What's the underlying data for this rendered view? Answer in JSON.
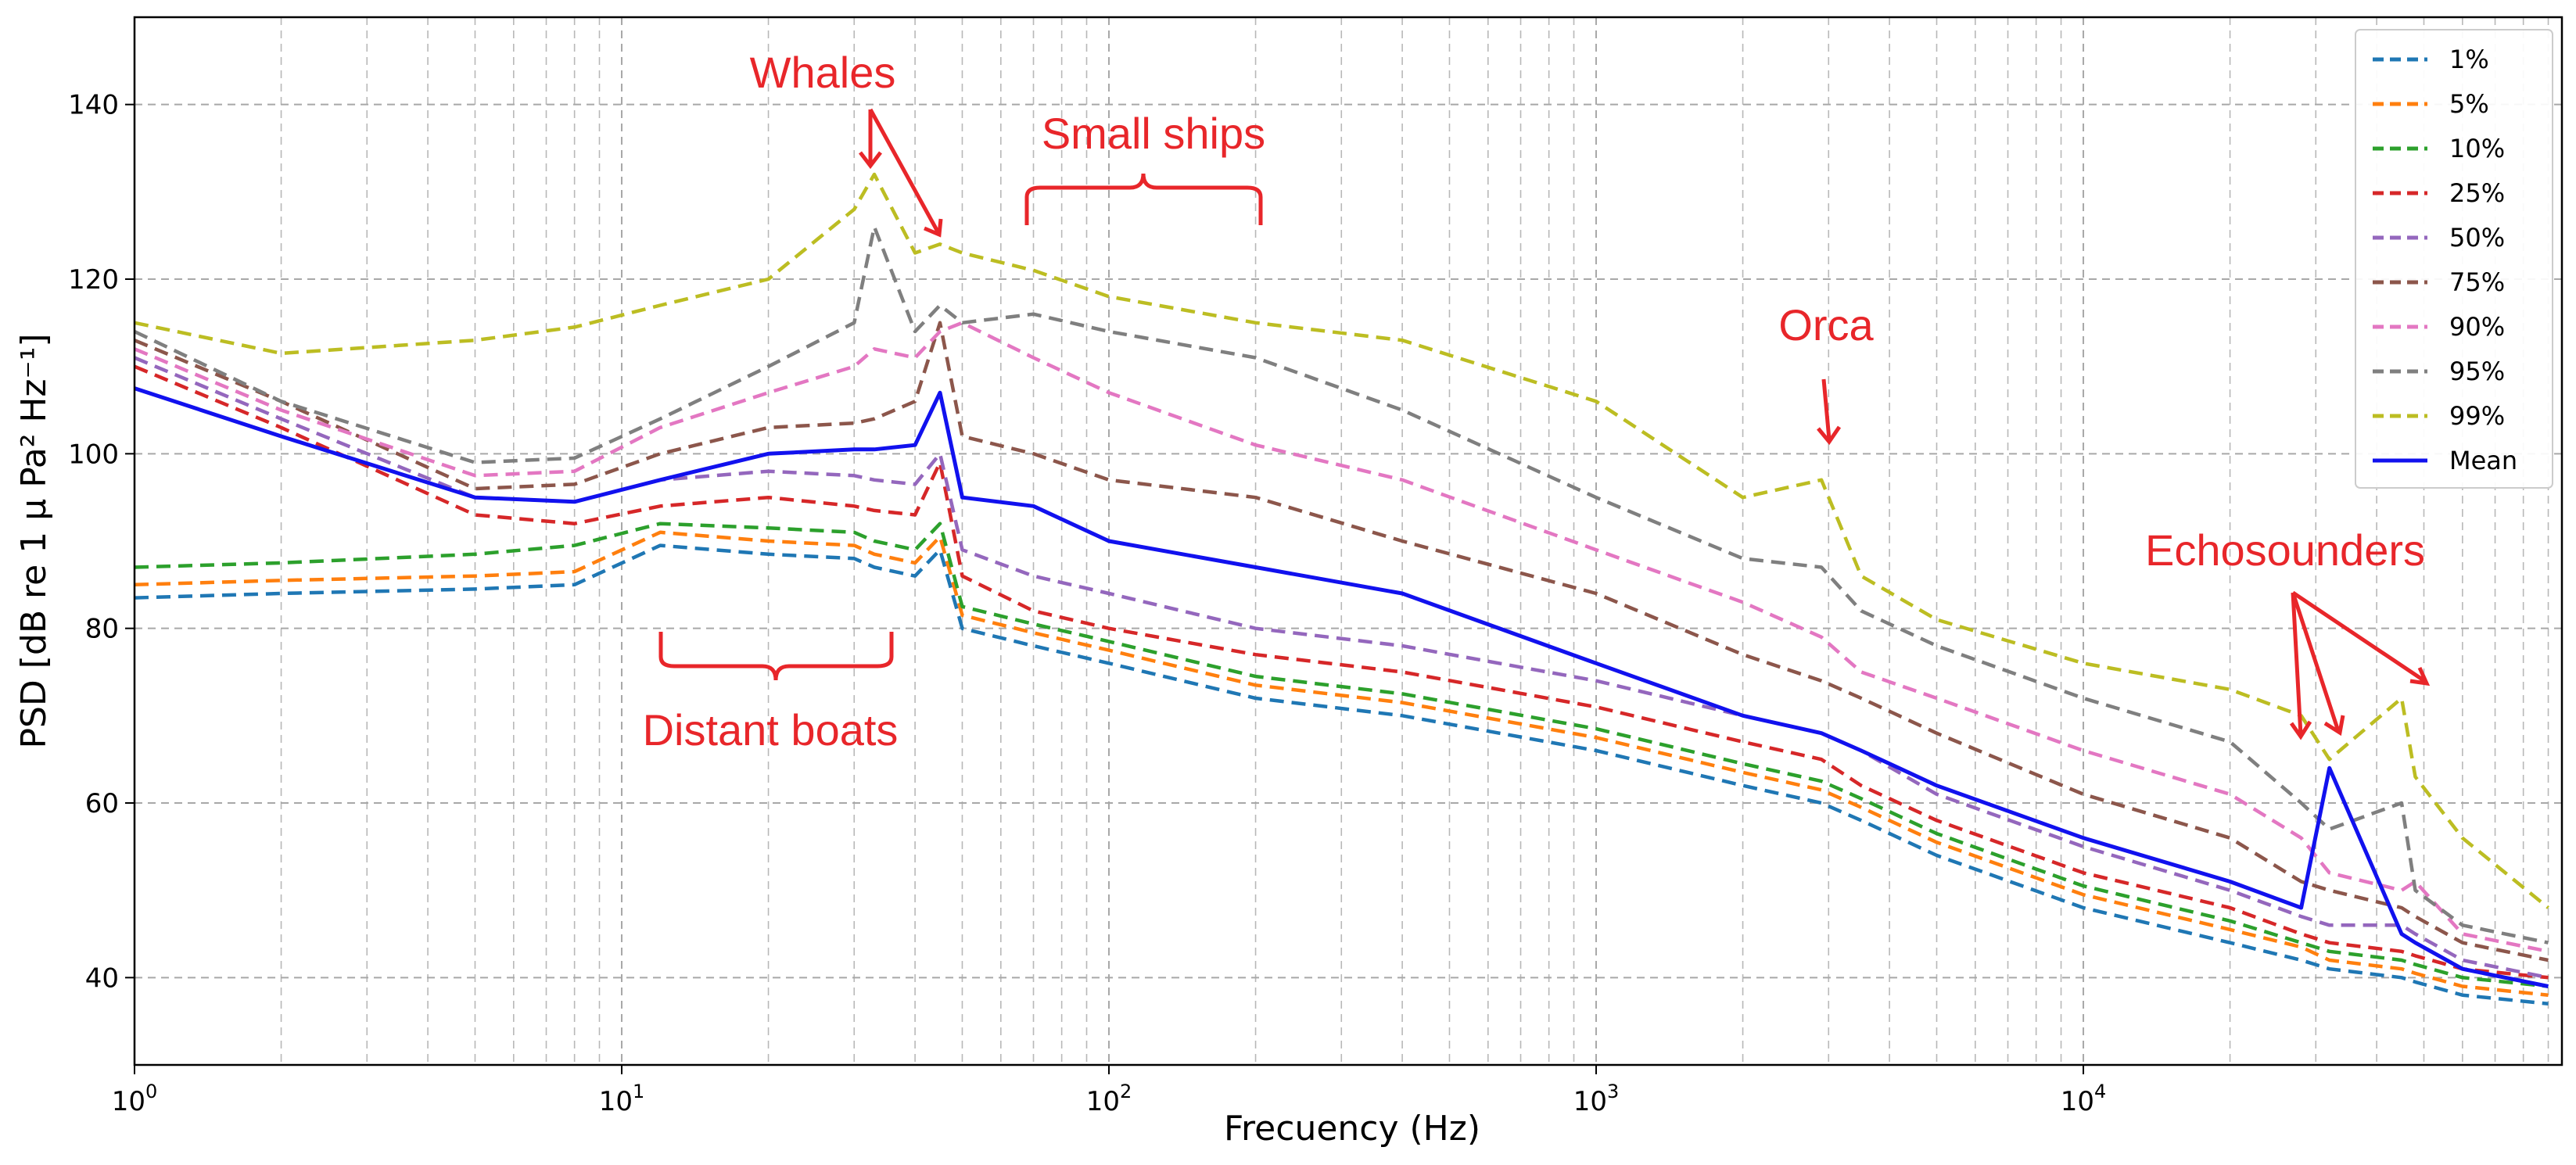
{
  "chart_data": {
    "type": "line",
    "title": "",
    "xlabel": "Frecuency (Hz)",
    "ylabel": "PSD [dB re 1 μ Pa² Hz⁻¹]",
    "xscale": "log",
    "xlim": [
      1,
      96000
    ],
    "ylim": [
      30,
      150
    ],
    "grid": true,
    "legend_position": "top-right",
    "x_ticks": [
      {
        "value": 1,
        "base": "10",
        "exp": "0"
      },
      {
        "value": 10,
        "base": "10",
        "exp": "1"
      },
      {
        "value": 100,
        "base": "10",
        "exp": "2"
      },
      {
        "value": 1000,
        "base": "10",
        "exp": "3"
      },
      {
        "value": 10000,
        "base": "10",
        "exp": "4"
      }
    ],
    "y_ticks": [
      40,
      60,
      80,
      100,
      120,
      140
    ],
    "x": [
      1,
      2,
      5,
      8,
      12,
      20,
      30,
      33,
      40,
      45,
      50,
      70,
      100,
      200,
      400,
      1000,
      2000,
      2900,
      3500,
      5000,
      10000,
      20000,
      28000,
      32000,
      45000,
      48000,
      60000,
      90000
    ],
    "series": [
      {
        "name": "1%",
        "style": "dashed",
        "color": "#1f77b4",
        "values": [
          83.5,
          84,
          84.5,
          85,
          89.5,
          88.5,
          88,
          87,
          86,
          89,
          80,
          78,
          76,
          72,
          70,
          66,
          62,
          60,
          58,
          54,
          48,
          44,
          42,
          41,
          40,
          39.5,
          38,
          37
        ]
      },
      {
        "name": "5%",
        "style": "dashed",
        "color": "#ff7f0e",
        "values": [
          85,
          85.5,
          86,
          86.5,
          91,
          90,
          89.5,
          88.5,
          87.5,
          90.5,
          81.5,
          79.5,
          77.5,
          73.5,
          71.5,
          67.5,
          63.5,
          61.5,
          59.5,
          55.5,
          49.5,
          45.5,
          43.5,
          42,
          41,
          40.5,
          39,
          38
        ]
      },
      {
        "name": "10%",
        "style": "dashed",
        "color": "#2ca02c",
        "values": [
          87,
          87.5,
          88.5,
          89.5,
          92,
          91.5,
          91,
          90,
          89,
          92,
          82.5,
          80.5,
          78.5,
          74.5,
          72.5,
          68.5,
          64.5,
          62.5,
          60.5,
          56.5,
          50.5,
          46.5,
          44,
          43,
          42,
          41.5,
          40,
          39
        ]
      },
      {
        "name": "25%",
        "style": "dashed",
        "color": "#d62728",
        "values": [
          110,
          103,
          93,
          92,
          94,
          95,
          94,
          93.5,
          93,
          99,
          86,
          82,
          80,
          77,
          75,
          71,
          67,
          65,
          62,
          58,
          52,
          48,
          45,
          44,
          43,
          42.5,
          41,
          40
        ]
      },
      {
        "name": "50%",
        "style": "dashed",
        "color": "#9467bd",
        "values": [
          111,
          104,
          95,
          94.5,
          97,
          98,
          97.5,
          97,
          96.5,
          100,
          89,
          86,
          84,
          80,
          78,
          74,
          70,
          68,
          66,
          61,
          55,
          50,
          47,
          46,
          46,
          45,
          42,
          40
        ]
      },
      {
        "name": "75%",
        "style": "dashed",
        "color": "#8c564b",
        "values": [
          113,
          106,
          96,
          96.5,
          100,
          103,
          103.5,
          104,
          106,
          115,
          102,
          100,
          97,
          95,
          90,
          84,
          77,
          74,
          72,
          68,
          61,
          56,
          51,
          50,
          48,
          47,
          44,
          42
        ]
      },
      {
        "name": "90%",
        "style": "dashed",
        "color": "#e377c2",
        "values": [
          112,
          105,
          97.5,
          98,
          103,
          107,
          110,
          112,
          111,
          114,
          115,
          111,
          107,
          101,
          97,
          89,
          83,
          79,
          75,
          72,
          66,
          61,
          56,
          52,
          50,
          51,
          45,
          43
        ]
      },
      {
        "name": "95%",
        "style": "dashed",
        "color": "#7f7f7f",
        "values": [
          114,
          106,
          99,
          99.5,
          104,
          110,
          115,
          126,
          114,
          117,
          115,
          116,
          114,
          111,
          105,
          95,
          88,
          87,
          82,
          78,
          72,
          67,
          60,
          57,
          60,
          50,
          46,
          44
        ]
      },
      {
        "name": "99%",
        "style": "dashed",
        "color": "#bcbd22",
        "values": [
          115,
          111.5,
          113,
          114.5,
          117,
          120,
          128,
          132,
          123,
          124,
          123,
          121,
          118,
          115,
          113,
          106,
          95,
          97,
          86,
          81,
          76,
          73,
          70,
          65,
          72,
          63,
          56,
          48
        ]
      },
      {
        "name": "Mean",
        "style": "solid",
        "color": "#1111ee",
        "values": [
          107.5,
          102,
          95,
          94.5,
          97,
          100,
          100.5,
          100.5,
          101,
          107,
          95,
          94,
          90,
          87,
          84,
          76,
          70,
          68,
          66,
          62,
          56,
          51,
          48,
          64,
          45,
          44,
          41,
          39
        ]
      }
    ],
    "annotations": [
      {
        "text": "Whales",
        "x": 28,
        "y": 142
      },
      {
        "text": "Small ships",
        "x": 130,
        "y": 134
      },
      {
        "text": "Orca",
        "x": 2500,
        "y": 112
      },
      {
        "text": "Echosounders",
        "x": 30000,
        "y": 86
      },
      {
        "text": "Distant boats",
        "x": 20,
        "y": 68
      }
    ]
  }
}
